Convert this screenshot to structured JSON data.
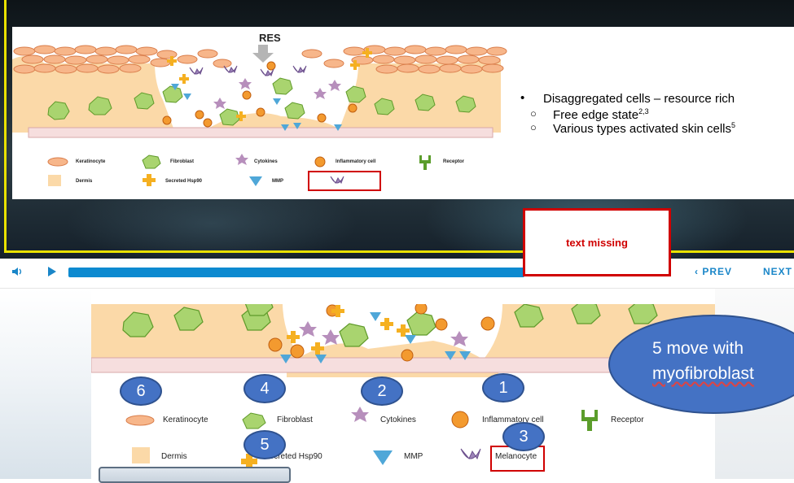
{
  "slide": {
    "res_label": "RES",
    "bullets": {
      "main": "Disaggregated cells – resource rich",
      "sub1": "Free edge state",
      "sub1_sup": "2,3",
      "sub2": "Various types activated skin cells",
      "sub2_sup": "5"
    },
    "legend": {
      "keratinocyte": "Keratinocyte",
      "fibroblast": "Fibroblast",
      "cytokines": "Cytokines",
      "inflammatory": "Inflammatory cell",
      "receptor": "Receptor",
      "dermis": "Dermis",
      "hsp90": "Secreted Hsp90",
      "mmp": "MMP"
    }
  },
  "annotation": {
    "missing_text": "text missing"
  },
  "controls": {
    "prev_label": "PREV",
    "next_label": "NEXT",
    "progress": 0.68
  },
  "zoom": {
    "legend": {
      "keratinocyte": "Keratinocyte",
      "fibroblast": "Fibroblast",
      "cytokines": "Cytokines",
      "inflammatory": "Inflammatory cell",
      "receptor": "Receptor",
      "dermis": "Dermis",
      "hsp90": "Secreted Hsp90",
      "mmp": "MMP",
      "melanocyte": "Melanocyte"
    },
    "markers": {
      "m1": "1",
      "m2": "2",
      "m3": "3",
      "m4": "4",
      "m5": "5",
      "m6": "6"
    },
    "bubble": {
      "line1": "5 move with",
      "line2": "myofibroblast"
    }
  },
  "colors": {
    "progress": "#0d8ad0",
    "annotation_red": "#d00000",
    "marker_blue": "#4472c4",
    "frame_yellow": "#e9e100",
    "dermis": "#fbd9a8",
    "fibroblast": "#8cc63f"
  }
}
